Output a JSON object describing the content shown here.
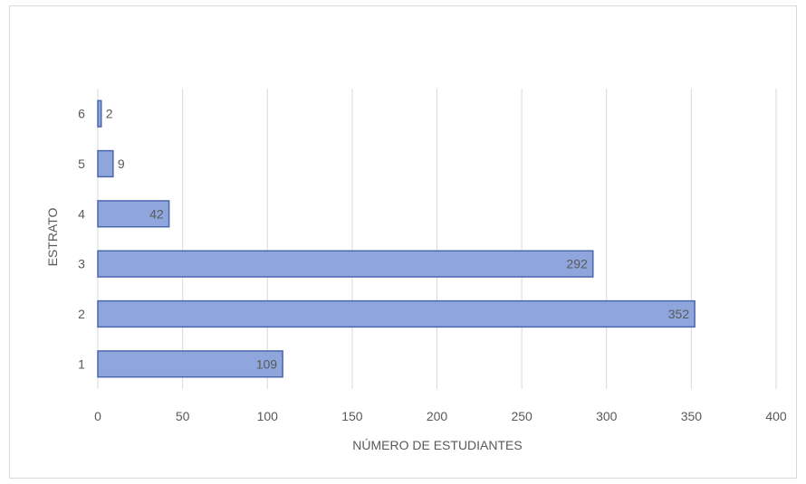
{
  "chart_data": {
    "type": "bar",
    "orientation": "horizontal",
    "categories": [
      "1",
      "2",
      "3",
      "4",
      "5",
      "6"
    ],
    "values": [
      109,
      352,
      292,
      42,
      9,
      2
    ],
    "data_labels": [
      "109",
      "352",
      "292",
      "42",
      "9",
      "2"
    ],
    "xlabel": "NÚMERO DE ESTUDIANTES",
    "ylabel": "ESTRATO",
    "xlim": [
      0,
      400
    ],
    "xticks": [
      0,
      50,
      100,
      150,
      200,
      250,
      300,
      350,
      400
    ],
    "grid": true,
    "bar_color": "#8fa6dc",
    "bar_edge_color": "#4a66ac"
  }
}
